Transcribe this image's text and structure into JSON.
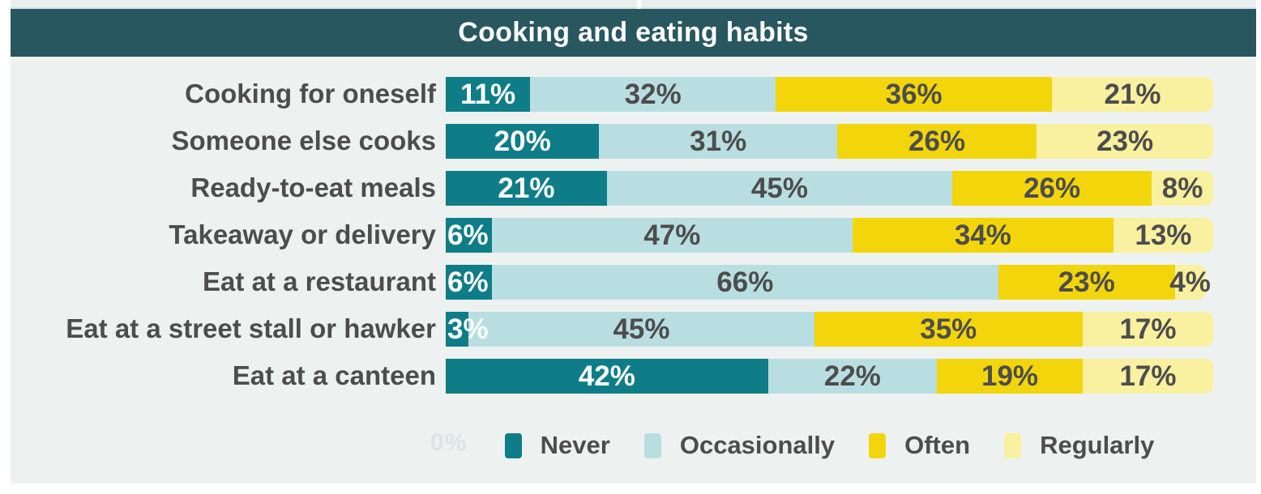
{
  "title": "Cooking and eating habits",
  "axis": {
    "zero_label": "0%"
  },
  "colors": {
    "page_bg": "#edf2f1",
    "strip_bg": "#e9efee",
    "title_bar_bg": "#28575f",
    "title_text": "#ffffff",
    "label_text": "#4d4d4d",
    "never": "#0e7d88",
    "occasionally": "#b9dee1",
    "often": "#f2d60b",
    "regularly": "#f9f0a0"
  },
  "chart_data": {
    "type": "bar",
    "orientation": "horizontal",
    "stacked": true,
    "title": "Cooking and eating habits",
    "value_suffix": "%",
    "xlim": [
      0,
      100
    ],
    "legend_position": "bottom",
    "categories": [
      "Cooking for oneself",
      "Someone else cooks",
      "Ready-to-eat meals",
      "Takeaway or delivery",
      "Eat at a restaurant",
      "Eat at a street stall or hawker",
      "Eat at a canteen"
    ],
    "series": [
      {
        "name": "Never",
        "color": "#0e7d88",
        "text_color": "#ffffff",
        "values": [
          11,
          20,
          21,
          6,
          6,
          3,
          42
        ]
      },
      {
        "name": "Occasionally",
        "color": "#b9dee1",
        "text_color": "#4d4d4d",
        "values": [
          32,
          31,
          45,
          47,
          66,
          45,
          22
        ]
      },
      {
        "name": "Often",
        "color": "#f2d60b",
        "text_color": "#4d4d4d",
        "values": [
          36,
          26,
          26,
          34,
          23,
          35,
          19
        ]
      },
      {
        "name": "Regularly",
        "color": "#f9f0a0",
        "text_color": "#4d4d4d",
        "values": [
          21,
          23,
          8,
          13,
          4,
          17,
          17
        ]
      }
    ]
  },
  "legend": {
    "items": [
      {
        "label": "Never",
        "color": "#0e7d88"
      },
      {
        "label": "Occasionally",
        "color": "#b9dee1"
      },
      {
        "label": "Often",
        "color": "#f2d60b"
      },
      {
        "label": "Regularly",
        "color": "#f9f0a0"
      }
    ]
  }
}
